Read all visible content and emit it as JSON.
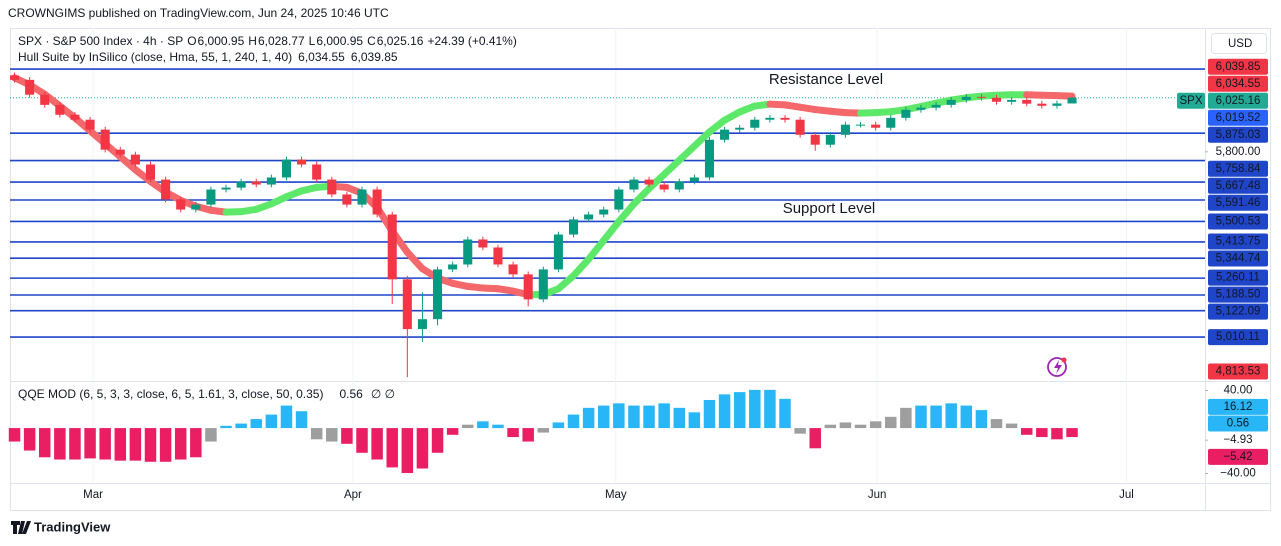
{
  "header": "CROWNGIMS published on TradingView.com, Jun 24, 2025 10:46 UTC",
  "footer": "TradingView",
  "chart_data": [
    {
      "type": "candlestick",
      "legend_items": [
        {
          "text": "SPX · S&P 500 Index · 4h · SP",
          "color": "#131722"
        },
        {
          "text": "O",
          "color": "#131722"
        },
        {
          "text": "6,000.95",
          "color": "#089981"
        },
        {
          "text": "H",
          "color": "#131722"
        },
        {
          "text": "6,028.77",
          "color": "#089981"
        },
        {
          "text": "L",
          "color": "#131722"
        },
        {
          "text": "6,000.95",
          "color": "#089981"
        },
        {
          "text": "C",
          "color": "#131722"
        },
        {
          "text": "6,025.16",
          "color": "#089981"
        },
        {
          "text": "+24.39 (+0.41%)",
          "color": "#089981"
        }
      ],
      "open": [
        6120,
        6101,
        6038,
        5995,
        5953,
        5932,
        5890,
        5805,
        5784,
        5742,
        5678,
        5594,
        5551,
        5572,
        5636,
        5644,
        5670,
        5657,
        5687,
        5763,
        5742,
        5678,
        5615,
        5572,
        5636,
        5530,
        5255,
        5044,
        5086,
        5297,
        5318,
        5424,
        5390,
        5318,
        5276,
        5170,
        5297,
        5445,
        5509,
        5530,
        5551,
        5636,
        5678,
        5657,
        5636,
        5670,
        5687,
        5847,
        5890,
        5898,
        5932,
        5940,
        5932,
        5868,
        5826,
        5868,
        5911,
        5911,
        5898,
        5940,
        5974,
        5983,
        5995,
        6016,
        6029,
        6025,
        6008,
        6016,
        6000,
        5991,
        6000.95
      ],
      "high": [
        6132,
        6113,
        6050,
        6007,
        5965,
        5944,
        5902,
        5817,
        5796,
        5754,
        5690,
        5606,
        5584,
        5648,
        5656,
        5682,
        5682,
        5699,
        5775,
        5775,
        5754,
        5690,
        5627,
        5648,
        5648,
        5542,
        5270,
        5200,
        5309,
        5330,
        5436,
        5436,
        5402,
        5330,
        5288,
        5309,
        5457,
        5521,
        5542,
        5563,
        5648,
        5690,
        5690,
        5669,
        5682,
        5699,
        5859,
        5902,
        5910,
        5944,
        5952,
        5952,
        5944,
        5880,
        5880,
        5923,
        5923,
        5923,
        5952,
        5986,
        5995,
        6007,
        6028,
        6041,
        6041,
        6037,
        6028,
        6028,
        6012,
        6013,
        6028.77
      ],
      "low": [
        6089,
        6026,
        5983,
        5941,
        5920,
        5878,
        5793,
        5772,
        5730,
        5666,
        5582,
        5539,
        5539,
        5560,
        5624,
        5632,
        5645,
        5645,
        5675,
        5730,
        5666,
        5603,
        5560,
        5560,
        5518,
        5150,
        4840,
        4990,
        5060,
        5285,
        5306,
        5378,
        5306,
        5264,
        5140,
        5158,
        5285,
        5433,
        5497,
        5518,
        5539,
        5624,
        5645,
        5624,
        5624,
        5658,
        5675,
        5835,
        5878,
        5886,
        5920,
        5920,
        5856,
        5800,
        5814,
        5856,
        5899,
        5886,
        5886,
        5928,
        5962,
        5971,
        5983,
        6004,
        6013,
        5996,
        5996,
        5988,
        5979,
        5979,
        6000.95
      ],
      "close": [
        6101,
        6038,
        5995,
        5953,
        5932,
        5890,
        5805,
        5784,
        5742,
        5678,
        5594,
        5551,
        5572,
        5636,
        5644,
        5670,
        5657,
        5687,
        5763,
        5742,
        5678,
        5615,
        5572,
        5636,
        5530,
        5255,
        5044,
        5086,
        5297,
        5318,
        5424,
        5390,
        5318,
        5276,
        5170,
        5297,
        5445,
        5509,
        5530,
        5551,
        5636,
        5678,
        5657,
        5636,
        5670,
        5687,
        5847,
        5890,
        5898,
        5932,
        5940,
        5932,
        5868,
        5826,
        5868,
        5911,
        5911,
        5898,
        5940,
        5974,
        5983,
        5995,
        6016,
        6029,
        6025,
        6008,
        6016,
        6000,
        5991,
        6000.95,
        6025.16
      ],
      "up_color": "#089981",
      "down_color": "#f23645",
      "hull": {
        "name": "Hull Suite by InSilico (close, Hma, 55, 1, 240, 1, 40)",
        "values_text": [
          {
            "text": "6,034.55",
            "color": "#f23645"
          },
          {
            "text": "6,039.85",
            "color": "#f23645"
          }
        ],
        "rising_color": "#5de86a",
        "falling_color": "#f4676b",
        "values": [
          6110,
          6080,
          6040,
          5990,
          5940,
          5885,
          5830,
          5775,
          5720,
          5670,
          5625,
          5590,
          5565,
          5548,
          5540,
          5542,
          5552,
          5575,
          5605,
          5630,
          5645,
          5650,
          5645,
          5620,
          5560,
          5460,
          5370,
          5300,
          5260,
          5238,
          5225,
          5218,
          5215,
          5205,
          5190,
          5190,
          5215,
          5270,
          5340,
          5420,
          5500,
          5575,
          5640,
          5700,
          5760,
          5820,
          5880,
          5930,
          5965,
          5990,
          5998,
          5995,
          5985,
          5975,
          5968,
          5962,
          5960,
          5962,
          5966,
          5975,
          5988,
          6002,
          6015,
          6025,
          6032,
          6036,
          6038,
          6038,
          6036,
          6034,
          6032
        ]
      },
      "levels": [
        {
          "value": 6147
        },
        {
          "value": 5875.03,
          "label": "5,875.03"
        },
        {
          "value": 5758.84,
          "label": "5,758.84"
        },
        {
          "value": 5667.48,
          "label": "5,667.48"
        },
        {
          "value": 5591.46,
          "label": "5,591.46"
        },
        {
          "value": 5500.53,
          "label": "5,500.53"
        },
        {
          "value": 5413.75,
          "label": "5,413.75"
        },
        {
          "value": 5344.74,
          "label": "5,344.74"
        },
        {
          "value": 5260.11,
          "label": "5,260.11"
        },
        {
          "value": 5188.5,
          "label": "5,188.50"
        },
        {
          "value": 5122.09,
          "label": "5,122.09"
        },
        {
          "value": 5010.11,
          "label": "5,010.11"
        }
      ],
      "level_color": "#1f45c9",
      "price_labels": [
        {
          "value": 6039.85,
          "label": "6,039.85",
          "color": "#f23645"
        },
        {
          "value": 6034.55,
          "label": "6,034.55",
          "color": "#f23645"
        },
        {
          "value": 6019.52,
          "label": "6,019.52",
          "color": "#2962ff"
        },
        {
          "value": 5800,
          "label": "5,800.00"
        },
        {
          "value": 4813.53,
          "label": "4,813.53",
          "color": "#f23645"
        }
      ],
      "last_price": {
        "value": 6025.16,
        "label": "6,025.16",
        "tag": "SPX",
        "color": "#22ab94"
      },
      "annotations": [
        "Resistance Level",
        "Support Level"
      ],
      "annotation_color": "#f23645",
      "currency": "USD",
      "xticks": [
        {
          "value": 5.2,
          "label": "Mar"
        },
        {
          "value": 22.4,
          "label": "Apr"
        },
        {
          "value": 39.8,
          "label": "May"
        },
        {
          "value": 57.1,
          "label": "Jun"
        },
        {
          "value": 73.6,
          "label": "Jul"
        }
      ],
      "xlim": [
        -0.3,
        78.8
      ],
      "ylim": [
        4828,
        6321
      ]
    },
    {
      "type": "bar",
      "title": "QQE MOD (6, 5, 3, 3, close, 6, 5, 1.61, 3, close, 50, 0.35)",
      "value_text": {
        "text": "0.56",
        "color": "#2962ff"
      },
      "status": "∅  ∅",
      "values": [
        -12,
        -20,
        -26,
        -28,
        -28,
        -27,
        -28,
        -29,
        -29,
        -30,
        -30,
        -28,
        -26,
        -12,
        2,
        4,
        8,
        12,
        20,
        15,
        -10,
        -12,
        -14,
        -22,
        -28,
        -35,
        -40,
        -36,
        -22,
        -6,
        3,
        6,
        3,
        -8,
        -12,
        -4,
        5,
        12,
        18,
        20,
        22,
        20,
        20,
        22,
        18,
        14,
        25,
        30,
        32,
        34,
        34,
        26,
        -5,
        -18,
        3,
        5,
        3,
        6,
        10,
        18,
        20,
        20,
        22,
        20,
        16,
        8,
        4,
        -6,
        -8,
        -10,
        -8
      ],
      "colors": [
        "#e91e63",
        "#e91e63",
        "#e91e63",
        "#e91e63",
        "#e91e63",
        "#e91e63",
        "#e91e63",
        "#e91e63",
        "#e91e63",
        "#e91e63",
        "#e91e63",
        "#e91e63",
        "#e91e63",
        "#9e9e9e",
        "#29b6f6",
        "#29b6f6",
        "#29b6f6",
        "#29b6f6",
        "#29b6f6",
        "#29b6f6",
        "#9e9e9e",
        "#9e9e9e",
        "#e91e63",
        "#e91e63",
        "#e91e63",
        "#e91e63",
        "#e91e63",
        "#e91e63",
        "#e91e63",
        "#e91e63",
        "#9e9e9e",
        "#29b6f6",
        "#29b6f6",
        "#e91e63",
        "#e91e63",
        "#9e9e9e",
        "#29b6f6",
        "#29b6f6",
        "#29b6f6",
        "#29b6f6",
        "#29b6f6",
        "#29b6f6",
        "#29b6f6",
        "#29b6f6",
        "#29b6f6",
        "#29b6f6",
        "#29b6f6",
        "#29b6f6",
        "#29b6f6",
        "#29b6f6",
        "#29b6f6",
        "#29b6f6",
        "#9e9e9e",
        "#e91e63",
        "#9e9e9e",
        "#9e9e9e",
        "#9e9e9e",
        "#9e9e9e",
        "#9e9e9e",
        "#9e9e9e",
        "#29b6f6",
        "#29b6f6",
        "#29b6f6",
        "#29b6f6",
        "#29b6f6",
        "#9e9e9e",
        "#9e9e9e",
        "#e91e63",
        "#e91e63",
        "#e91e63",
        "#e91e63"
      ],
      "ylim": [
        -48,
        41
      ],
      "yticks": [
        {
          "value": 40,
          "label": "40.00"
        },
        {
          "value": -40,
          "label": "−40.00"
        }
      ],
      "axis_labels": [
        {
          "value": 16.12,
          "label": "16.12",
          "color": "#29b6f6"
        },
        {
          "value": 0.56,
          "label": "0.56",
          "color": "#29b6f6"
        },
        {
          "value": -4.93,
          "label": "−4.93"
        },
        {
          "value": -5.42,
          "label": "−5.42",
          "color": "#e91e63"
        }
      ]
    }
  ]
}
